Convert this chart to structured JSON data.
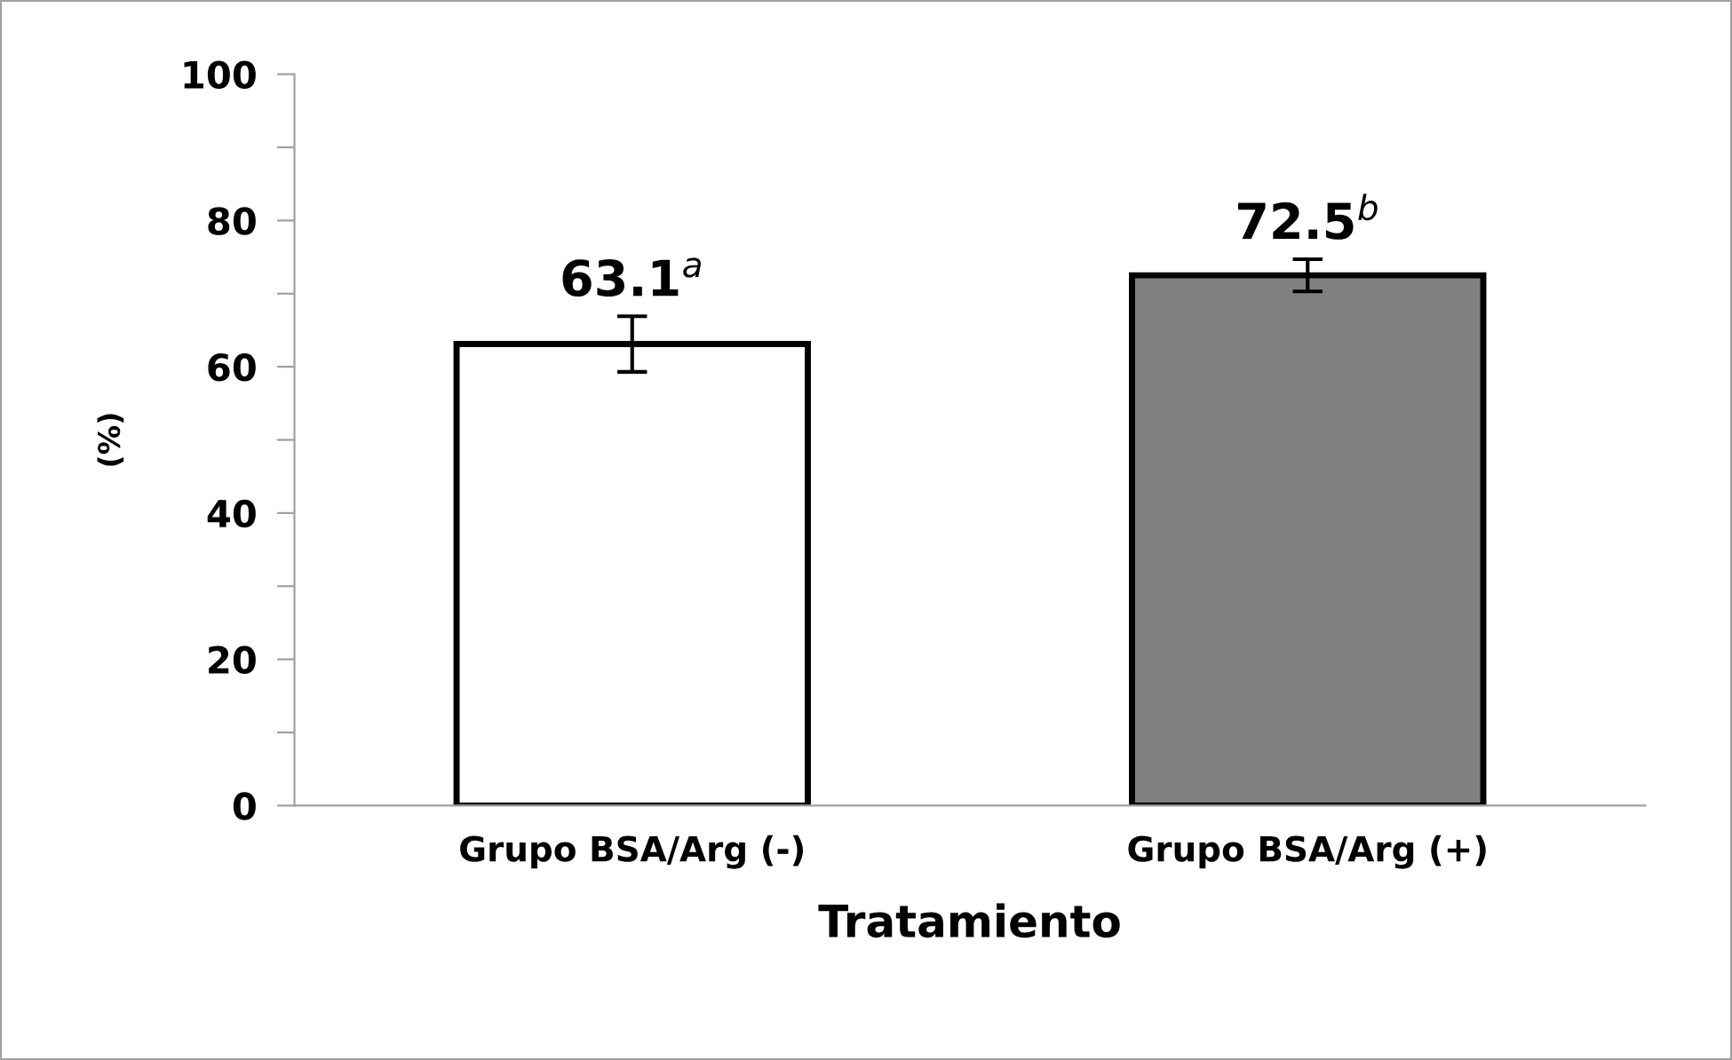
{
  "chart_data": {
    "type": "bar",
    "xlabel": "Tratamiento",
    "ylabel": "(%)",
    "categories": [
      "Grupo BSA/Arg (-)",
      "Grupo BSA/Arg (+)"
    ],
    "values": [
      63.1,
      72.5
    ],
    "colors": [
      "#ffffff",
      "#808080"
    ],
    "errors": [
      3.8,
      2.2
    ],
    "value_labels": [
      "63.1$^{a}$",
      "72.5$^{b}$"
    ],
    "ylim": [
      0,
      100
    ],
    "yticks": [
      0,
      {
        "value": 10,
        "label": null
      },
      20,
      {
        "value": 30,
        "label": null
      },
      40,
      {
        "value": 50,
        "label": null
      },
      60,
      {
        "value": 70,
        "label": null
      },
      80,
      {
        "value": 90,
        "label": null
      },
      100
    ],
    "grid": false,
    "legend": false
  }
}
